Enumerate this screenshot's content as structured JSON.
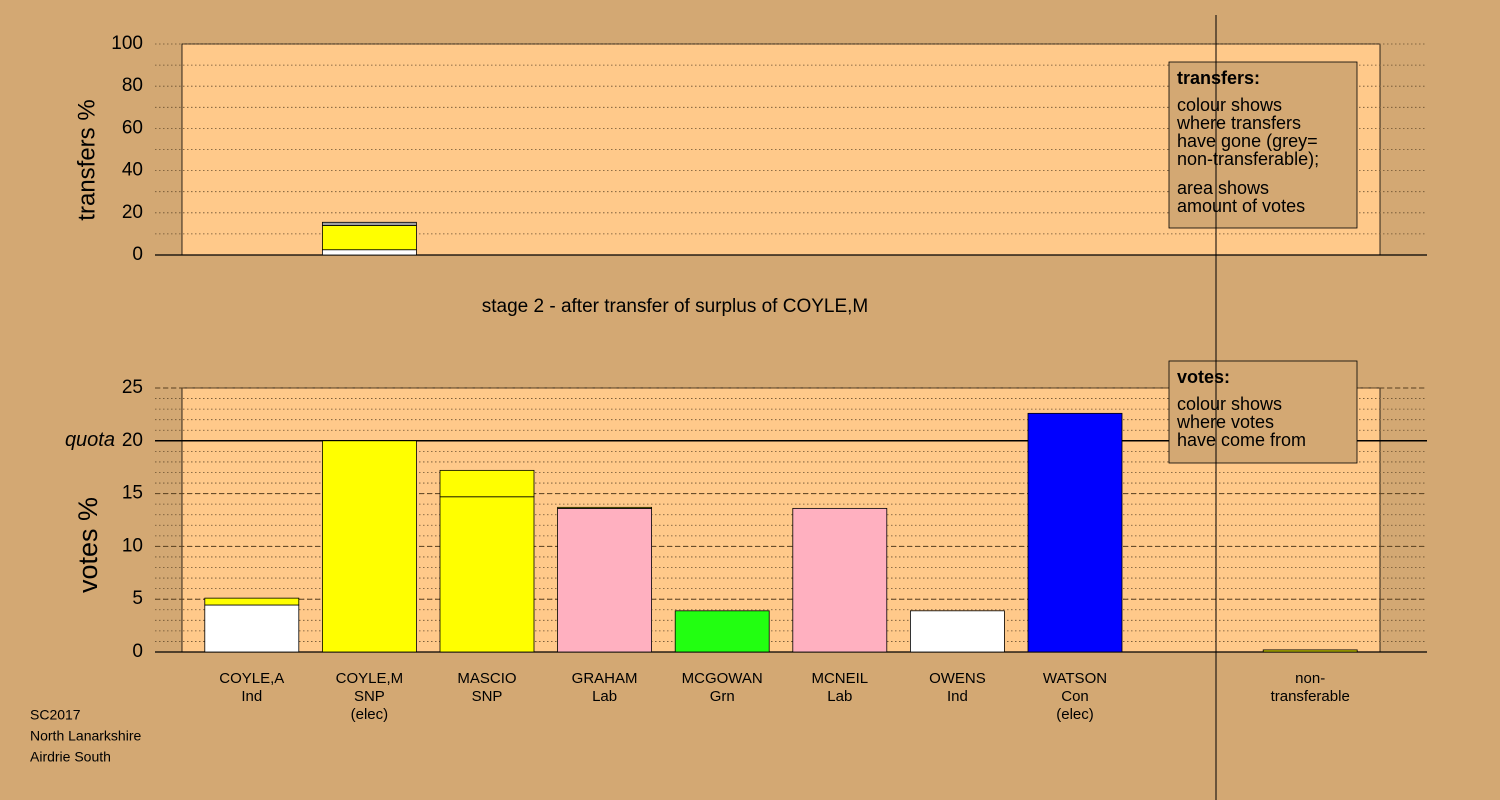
{
  "chart_data": [
    {
      "type": "stacked-bar",
      "ylabel": "transfers %",
      "ylim": [
        0,
        100
      ],
      "yticks": [
        0,
        20,
        40,
        60,
        80,
        100
      ],
      "minor_yticks": [
        0,
        10,
        20,
        30,
        40,
        50,
        60,
        70,
        80,
        90,
        100
      ],
      "major_grid": false,
      "plot_color": "#ffc98a",
      "bars": [
        [],
        [
          {
            "color": "#ffffff",
            "value": 2.5
          },
          {
            "color": "#ffff00",
            "value": 11.5
          },
          {
            "color": "#a0a0a0",
            "value": 1.5
          }
        ],
        [],
        [],
        [],
        [],
        [],
        [],
        [],
        []
      ],
      "legend": {
        "title": "transfers:",
        "paragraphs": [
          [
            "colour shows",
            "where transfers",
            "have gone (grey=",
            "non-transferable);"
          ],
          [
            "area shows",
            "amount of votes"
          ]
        ]
      }
    },
    {
      "type": "stacked-bar",
      "title": "stage 2 - after transfer of surplus of COYLE,M",
      "ylabel": "votes %",
      "ylim": [
        0,
        25
      ],
      "yticks": [
        0,
        5,
        10,
        15,
        20,
        25
      ],
      "minor_yticks": [
        0,
        1,
        2,
        3,
        4,
        5,
        6,
        7,
        8,
        9,
        10,
        11,
        12,
        13,
        14,
        15,
        16,
        17,
        18,
        19,
        20,
        21,
        22,
        23,
        24,
        25
      ],
      "major_grid": true,
      "plot_color": "#ffc98a",
      "quota": 20,
      "quota_label": "quota",
      "categories": [
        [
          "COYLE,A",
          "Ind"
        ],
        [
          "COYLE,M",
          "SNP",
          "(elec)"
        ],
        [
          "MASCIO",
          "SNP"
        ],
        [
          "GRAHAM",
          "Lab"
        ],
        [
          "MCGOWAN",
          "Grn"
        ],
        [
          "MCNEIL",
          "Lab"
        ],
        [
          "OWENS",
          "Ind"
        ],
        [
          "WATSON",
          "Con",
          "(elec)"
        ],
        null,
        [
          "non-",
          "transferable"
        ]
      ],
      "bars": [
        [
          {
            "color": "#ffffff",
            "value": 4.45
          },
          {
            "color": "#ffff00",
            "value": 0.65
          }
        ],
        [
          {
            "color": "#ffff00",
            "value": 20.0
          }
        ],
        [
          {
            "color": "#ffff00",
            "value": 14.7
          },
          {
            "color": "#ffff00",
            "value": 2.5
          }
        ],
        [
          {
            "color": "#ffb0c0",
            "value": 13.6
          },
          {
            "color": "#ffff00",
            "value": 0.1
          }
        ],
        [
          {
            "color": "#22ff11",
            "value": 3.9
          }
        ],
        [
          {
            "color": "#ffb0c0",
            "value": 13.6
          }
        ],
        [
          {
            "color": "#ffffff",
            "value": 3.9
          }
        ],
        [
          {
            "color": "#0000ff",
            "value": 22.6
          }
        ],
        [],
        [
          {
            "color": "#c8c800",
            "value": 0.2
          }
        ]
      ],
      "legend": {
        "title": "votes:",
        "paragraphs": [
          [
            "colour shows",
            "where votes",
            "have come from"
          ]
        ]
      }
    },
    {
      "type": "note",
      "lines": [
        "SC2017",
        "North Lanarkshire",
        "Airdrie South"
      ]
    }
  ]
}
